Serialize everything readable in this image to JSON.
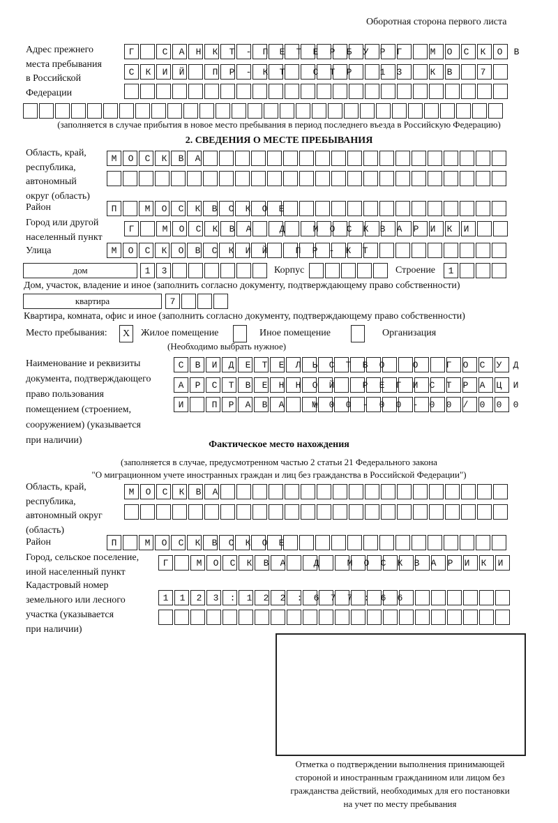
{
  "header": "Оборотная сторона первого листа",
  "prev_address": {
    "label": [
      "Адрес прежнего",
      "места пребывания",
      "в Российской",
      "Федерации"
    ],
    "rows": [
      "Г САНКТ-ПЕТЕРБУРГ МОСКОВ",
      "СКИЙ ПР-КТ СТР 13 КВ 7",
      "",
      ""
    ],
    "note": "(заполняется в случае прибытия в новое место пребывания в период последнего въезда в Российскую Федерацию)"
  },
  "section2": {
    "title": "2. СВЕДЕНИЯ О МЕСТЕ ПРЕБЫВАНИЯ",
    "region_label": [
      "Область, край,",
      "республика,",
      "автономный",
      "округ (область)"
    ],
    "region_rows": [
      "МОСКВА",
      ""
    ],
    "district_label": "Район",
    "district": "П МОСКВСКОЕ",
    "city_label": [
      "Город или другой",
      "населенный пункт"
    ],
    "city": "Г МОСКВА Д МОСКВАРИКИ",
    "street_label": "Улица",
    "street": "МОСКОВСКИЙ ПР-КТ",
    "house_type": "дом",
    "house": "13",
    "korpus_label": "Корпус",
    "korpus": "",
    "building_label": "Строение",
    "building": "1",
    "house_note": "Дом, участок, владение и иное (заполнить согласно документу, подтверждающему право собственности)",
    "apt_type": "квартира",
    "apt": "7",
    "apt_note": "Квартира, комната, офис и иное (заполнить согласно документу, подтверждающему право собственности)",
    "stay_label": "Место пребывания:",
    "stay_options": [
      {
        "label": "Жилое помещение",
        "mark": "Х",
        "checked": true
      },
      {
        "label": "Иное помещение",
        "mark": "",
        "checked": false
      },
      {
        "label": "Организация",
        "mark": "",
        "checked": false
      }
    ],
    "stay_note": "(Необходимо выбрать нужное)",
    "doc_label": [
      "Наименование и реквизиты",
      "документа, подтверждающего",
      "право пользования",
      "помещением (строением,",
      "сооружением) (указывается",
      "при наличии)"
    ],
    "doc_rows": [
      "СВИДЕТЕЛЬСТВО О ГОСУД",
      "АРСТВЕННОЙ РЕГИСТРАЦИ",
      "И ПРАВА №00-00-00/000"
    ]
  },
  "actual": {
    "title": "Фактическое место нахождения",
    "note1": "(заполняется в случае, предусмотренном частью 2 статьи 21 Федерального закона",
    "note2": "\"О миграционном учете иностранных граждан и лиц без гражданства в Российской Федерации\")",
    "region_label": [
      "Область, край,",
      "республика,",
      "автономный округ",
      "(область)"
    ],
    "region_rows": [
      "МОСКВА",
      ""
    ],
    "district_label": "Район",
    "district": "П МОСКВСКОЕ",
    "city_label": [
      "Город, сельское поселение,",
      "иной населенный пункт"
    ],
    "city": "Г МОСКВА Д МОСКВАРИКИ",
    "cadastral_label": [
      "Кадастровый номер",
      "земельного или лесного",
      "участка (указывается",
      "при наличии)"
    ],
    "cadastral_rows": [
      "1123:122:677:66",
      ""
    ]
  },
  "stamp_caption": [
    "Отметка о подтверждении выполнения принимающей",
    "стороной и иностранным гражданином или лицом без",
    "гражданства действий, необходимых для его постановки",
    "на учет по месту пребывания"
  ]
}
